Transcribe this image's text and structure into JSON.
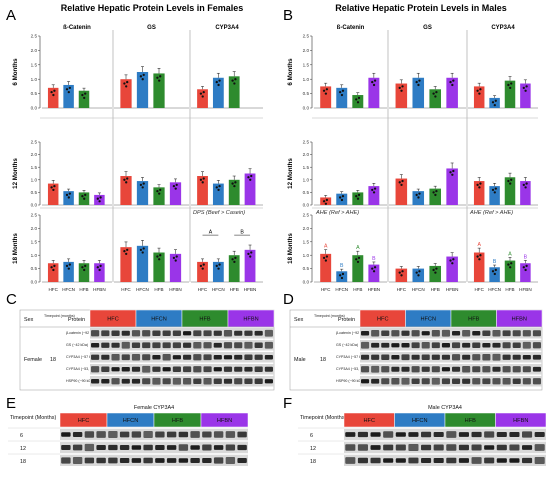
{
  "panels": {
    "a": "A",
    "b": "B",
    "c": "C",
    "d": "D",
    "e": "E",
    "f": "F"
  },
  "titles": {
    "female": "Relative Hepatic Protein Levels in Females",
    "male": "Relative Hepatic Protein Levels in Males"
  },
  "colors": {
    "HFC": "#e8463a",
    "HFCN": "#2e7cc4",
    "HFB": "#2e8b2e",
    "HFBN": "#9a35e8"
  },
  "chart_data": [
    {
      "type": "bar",
      "sex": "Female",
      "genes": [
        "ß-Catenin",
        "GS",
        "CYP3A4"
      ],
      "categories": [
        "HFC",
        "HFCN",
        "HFB",
        "HFBN"
      ],
      "ylim": [
        0,
        2.5
      ],
      "yticks": [
        0,
        0.5,
        1.0,
        1.5,
        2.0,
        2.5
      ],
      "rows": [
        {
          "label": "6 Months",
          "panels": [
            {
              "values": [
                0.7,
                0.8,
                0.6,
                null
              ]
            },
            {
              "values": [
                1.0,
                1.25,
                1.2,
                null
              ]
            },
            {
              "values": [
                0.65,
                1.05,
                1.1,
                null
              ]
            }
          ]
        },
        {
          "label": "12 Months",
          "panels": [
            {
              "values": [
                0.85,
                0.55,
                0.5,
                0.4
              ]
            },
            {
              "values": [
                1.15,
                0.95,
                0.7,
                0.9
              ]
            },
            {
              "values": [
                1.15,
                0.85,
                1.0,
                1.25
              ]
            }
          ]
        },
        {
          "label": "18 Months",
          "panels": [
            {
              "values": [
                0.7,
                0.75,
                0.7,
                0.7
              ]
            },
            {
              "values": [
                1.3,
                1.35,
                1.1,
                1.05
              ]
            },
            {
              "values": [
                0.75,
                0.75,
                1.0,
                1.2
              ],
              "note": "DPS (Beef > Casein)",
              "sig": [
                {
                  "from": 0,
                  "to": 1,
                  "label": "A"
                },
                {
                  "from": 2,
                  "to": 3,
                  "label": "B"
                }
              ]
            }
          ]
        }
      ]
    },
    {
      "type": "bar",
      "sex": "Male",
      "genes": [
        "ß-Catenin",
        "GS",
        "CYP3A4"
      ],
      "categories": [
        "HFC",
        "HFCN",
        "HFB",
        "HFBN"
      ],
      "ylim": [
        0,
        2.5
      ],
      "yticks": [
        0,
        0.5,
        1.0,
        1.5,
        2.0,
        2.5
      ],
      "rows": [
        {
          "label": "6 Months",
          "panels": [
            {
              "values": [
                0.75,
                0.7,
                0.45,
                1.05
              ]
            },
            {
              "values": [
                0.85,
                1.05,
                0.65,
                1.05
              ]
            },
            {
              "values": [
                0.75,
                0.35,
                0.95,
                0.85
              ]
            }
          ]
        },
        {
          "label": "12 Months",
          "panels": [
            {
              "values": [
                0.3,
                0.45,
                0.5,
                0.75
              ]
            },
            {
              "values": [
                1.05,
                0.55,
                0.65,
                1.45
              ]
            },
            {
              "values": [
                0.95,
                0.75,
                1.1,
                0.95
              ]
            }
          ]
        },
        {
          "label": "18 Months",
          "panels": [
            {
              "values": [
                1.05,
                0.4,
                1.0,
                0.65
              ],
              "note": "AHE (Ref > AHE)",
              "letters": [
                "A",
                "B",
                "A",
                "B"
              ]
            },
            {
              "values": [
                0.5,
                0.5,
                0.6,
                0.95
              ]
            },
            {
              "values": [
                1.1,
                0.55,
                0.8,
                0.7
              ],
              "note": "AHE (Ref > AHE)",
              "letters": [
                "A",
                "B",
                "A",
                "B"
              ]
            }
          ]
        }
      ]
    }
  ],
  "blots": {
    "female": {
      "sex_header": "Sex",
      "timepoint_header": "Timepoint (months)",
      "protein_header": "Protein",
      "sex": "Female",
      "timepoint": "18",
      "proteins": [
        "β-catenin (~92 kDa)",
        "GS (~42 kDa)",
        "CYP3A4 (~57 kDa)",
        "CYP3A4 (~53, 56 kDa)",
        "HSP90 (~90 kDa)"
      ],
      "groups": [
        "HFC",
        "HFCN",
        "HFB",
        "HFBN"
      ]
    },
    "male": {
      "sex_header": "Sex",
      "timepoint_header": "Timepoint (months)",
      "protein_header": "Protein",
      "sex": "Male",
      "timepoint": "18",
      "proteins": [
        "β-catenin (~92 kDa)",
        "GS (~42 kDa)",
        "CYP3A4 (~57 kDa)",
        "CYP3A4 (~53, 56 kDa)",
        "HSP90 (~90 kDa)"
      ],
      "groups": [
        "HFC",
        "HFCN",
        "HFB",
        "HFBN"
      ]
    },
    "female_cyp": {
      "title": "Female CYP3A4",
      "timepoint_header": "Timepoint (Months)",
      "timepoints": [
        "6",
        "12",
        "18"
      ],
      "groups": [
        "HFC",
        "HFCN",
        "HFB",
        "HFBN"
      ]
    },
    "male_cyp": {
      "title": "Male CYP3A4",
      "timepoint_header": "Timepoint (Months)",
      "timepoints": [
        "6",
        "12",
        "18"
      ],
      "groups": [
        "HFC",
        "HFCN",
        "HFB",
        "HFBN"
      ]
    }
  }
}
